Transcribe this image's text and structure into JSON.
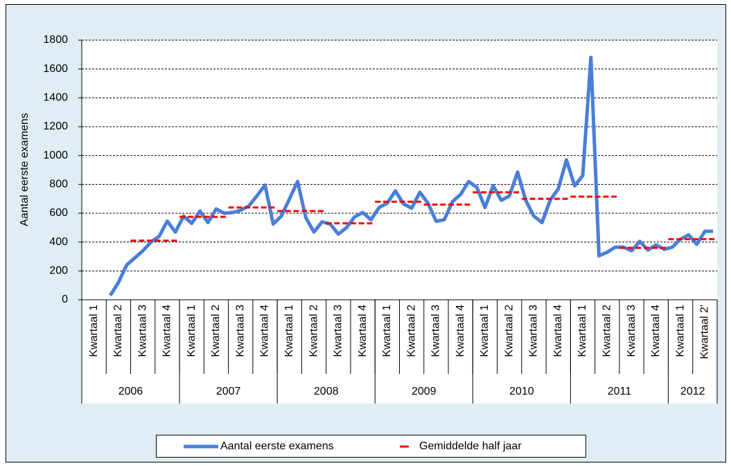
{
  "chart_data": {
    "type": "line",
    "y_label": "Aantal eerste examens",
    "categories": [
      null,
      "Kwartaal 1",
      null,
      null,
      "Kwartaal 2",
      null,
      null,
      "Kwartaal 3",
      null,
      null,
      "Kwartaal 4",
      null,
      null,
      "Kwartaal 1",
      null,
      null,
      "Kwartaal 2",
      null,
      null,
      "Kwartaal 3",
      null,
      null,
      "Kwartaal 4",
      null,
      null,
      "Kwartaal 1",
      null,
      null,
      "Kwartaal 2",
      null,
      null,
      "Kwartaal 3",
      null,
      null,
      "Kwartaal 4",
      null,
      null,
      "Kwartaal 1",
      null,
      null,
      "Kwartaal 2",
      null,
      null,
      "Kwartaal 3",
      null,
      null,
      "Kwartaal 4",
      null,
      null,
      "Kwartaal 1",
      null,
      null,
      "Kwartaal 2",
      null,
      null,
      "Kwartaal 3",
      null,
      null,
      "Kwartaal 4",
      null,
      null,
      "Kwartaal 1",
      null,
      null,
      "Kwartaal 2",
      null,
      null,
      "Kwartaal 3",
      null,
      null,
      "Kwartaal 4",
      null,
      null,
      "Kwartaal 1",
      null,
      null,
      "Kwartaal 2'",
      null
    ],
    "groups": [
      {
        "label": "2006",
        "size": 12
      },
      {
        "label": "2007",
        "size": 12
      },
      {
        "label": "2008",
        "size": 12
      },
      {
        "label": "2009",
        "size": 12
      },
      {
        "label": "2010",
        "size": 12
      },
      {
        "label": "2011",
        "size": 12
      },
      {
        "label": "2012",
        "size": 6
      }
    ],
    "series": [
      {
        "name": "Aantal eerste examens",
        "color": "#4a7ed8",
        "dashed": false,
        "values": [
          null,
          null,
          null,
          30,
          120,
          240,
          290,
          340,
          400,
          440,
          545,
          470,
          580,
          530,
          615,
          535,
          630,
          600,
          605,
          620,
          650,
          720,
          795,
          525,
          580,
          700,
          820,
          570,
          470,
          540,
          525,
          455,
          500,
          575,
          605,
          555,
          640,
          670,
          755,
          665,
          635,
          745,
          670,
          545,
          555,
          680,
          730,
          820,
          780,
          640,
          790,
          690,
          720,
          885,
          690,
          580,
          535,
          690,
          770,
          970,
          790,
          860,
          1680,
          305,
          330,
          365,
          365,
          340,
          405,
          345,
          380,
          350,
          365,
          420,
          450,
          385,
          475,
          475
        ]
      },
      {
        "name": "Gemiddelde half jaar",
        "color": "#ff0000",
        "dashed": true,
        "values": [
          null,
          null,
          null,
          null,
          null,
          null,
          410,
          410,
          410,
          410,
          410,
          410,
          575,
          575,
          575,
          575,
          575,
          575,
          640,
          640,
          640,
          640,
          640,
          640,
          615,
          615,
          615,
          615,
          615,
          615,
          530,
          530,
          530,
          530,
          530,
          530,
          680,
          680,
          680,
          680,
          680,
          680,
          660,
          660,
          660,
          660,
          660,
          660,
          745,
          745,
          745,
          745,
          745,
          745,
          700,
          700,
          700,
          700,
          700,
          700,
          715,
          715,
          715,
          715,
          715,
          715,
          360,
          360,
          360,
          360,
          360,
          360,
          420,
          420,
          420,
          420,
          420,
          420
        ]
      }
    ],
    "ylim": [
      0,
      1800
    ],
    "yticks": [
      0,
      200,
      400,
      600,
      800,
      1000,
      1200,
      1400,
      1600,
      1800
    ],
    "grid": true,
    "legend": "bottom"
  }
}
